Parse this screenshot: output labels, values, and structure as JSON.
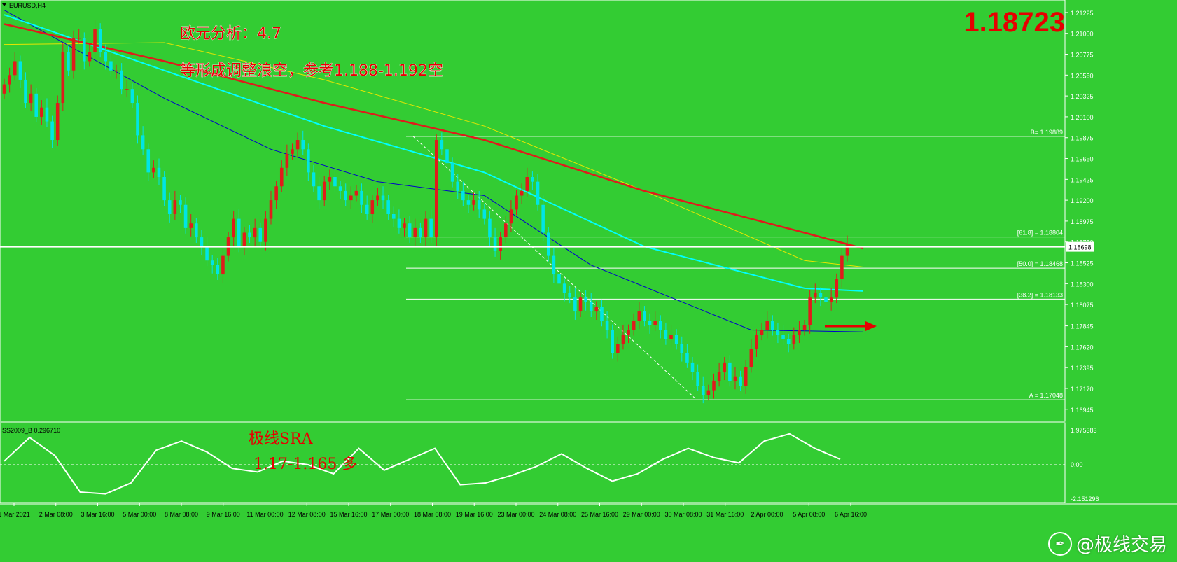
{
  "header": {
    "symbol": "EURUSD,H4",
    "current_price_big": "1.18723"
  },
  "annotations": {
    "line1": "欧元分析：4.7",
    "line2": "等形成调整浪空，参考1.188-1.192空",
    "indicator_note1": "极线SRA",
    "indicator_note2": "1.17-1.165 多"
  },
  "indicator": {
    "label": "SS2009_B 0.296710",
    "axis_top": "1.975383",
    "axis_zero": "0.00",
    "axis_bottom": "-2.151296"
  },
  "watermark": {
    "text": "@极线交易",
    "icon": "feather-logo-icon"
  },
  "colors": {
    "background": "#33cc33",
    "bull": "#e01b1b",
    "bear": "#00e5e5",
    "ma_red": "#e01b1b",
    "ma_cyan": "#00ffff",
    "ma_yellow": "#e6e600",
    "ma_blue": "#0000cc",
    "text_red": "#e60000"
  },
  "chart_data": {
    "type": "candlestick",
    "symbol": "EURUSD",
    "timeframe": "H4",
    "ylim": [
      1.1683,
      1.213
    ],
    "y_ticks": [
      "1.21225",
      "1.21000",
      "1.20775",
      "1.20550",
      "1.20325",
      "1.20100",
      "1.19875",
      "1.19650",
      "1.19425",
      "1.19200",
      "1.18975",
      "1.18750",
      "1.18525",
      "1.18300",
      "1.18075",
      "1.17845",
      "1.17620",
      "1.17395",
      "1.17170",
      "1.16945"
    ],
    "x_ticks": [
      "1 Mar 2021",
      "2 Mar 08:00",
      "3 Mar 16:00",
      "5 Mar 00:00",
      "8 Mar 08:00",
      "9 Mar 16:00",
      "11 Mar 00:00",
      "12 Mar 08:00",
      "15 Mar 16:00",
      "17 Mar 00:00",
      "18 Mar 08:00",
      "19 Mar 16:00",
      "23 Mar 00:00",
      "24 Mar 08:00",
      "25 Mar 16:00",
      "29 Mar 00:00",
      "30 Mar 08:00",
      "31 Mar 16:00",
      "2 Apr 00:00",
      "5 Apr 08:00",
      "6 Apr 16:00"
    ],
    "current_price_label": "1.18698",
    "fibonacci": [
      {
        "label": "B= 1.19889",
        "value": 1.19889
      },
      {
        "label": "[61.8] = 1.18804",
        "value": 1.18804
      },
      {
        "label": "[50.0] = 1.18468",
        "value": 1.18468
      },
      {
        "label": "[38.2] = 1.18133",
        "value": 1.18133
      },
      {
        "label": "A = 1.17048",
        "value": 1.17048
      }
    ],
    "closes": [
      1.2045,
      1.2055,
      1.207,
      1.205,
      1.2025,
      1.2035,
      1.201,
      1.202,
      1.2005,
      1.1985,
      1.2025,
      1.208,
      1.206,
      1.2095,
      1.2095,
      1.207,
      1.208,
      1.2105,
      1.208,
      1.207,
      1.206,
      1.206,
      1.204,
      1.204,
      1.2025,
      1.199,
      1.1975,
      1.195,
      1.1955,
      1.1945,
      1.192,
      1.1905,
      1.192,
      1.1915,
      1.189,
      1.1895,
      1.188,
      1.187,
      1.1855,
      1.185,
      1.184,
      1.186,
      1.188,
      1.19,
      1.187,
      1.1885,
      1.188,
      1.189,
      1.1875,
      1.19,
      1.192,
      1.1935,
      1.1955,
      1.197,
      1.1975,
      1.1985,
      1.1975,
      1.195,
      1.1935,
      1.192,
      1.194,
      1.1945,
      1.1935,
      1.193,
      1.192,
      1.1925,
      1.193,
      1.1915,
      1.1905,
      1.192,
      1.1925,
      1.192,
      1.1905,
      1.19,
      1.189,
      1.1895,
      1.188,
      1.189,
      1.188,
      1.19,
      1.188,
      1.1985,
      1.1975,
      1.196,
      1.194,
      1.193,
      1.192,
      1.1915,
      1.192,
      1.191,
      1.19,
      1.188,
      1.1865,
      1.188,
      1.1895,
      1.191,
      1.1925,
      1.193,
      1.1945,
      1.194,
      1.1915,
      1.1885,
      1.186,
      1.184,
      1.183,
      1.182,
      1.1815,
      1.18,
      1.1815,
      1.181,
      1.18,
      1.1805,
      1.179,
      1.178,
      1.1755,
      1.1765,
      1.1775,
      1.178,
      1.179,
      1.18,
      1.179,
      1.1785,
      1.179,
      1.178,
      1.177,
      1.1775,
      1.1765,
      1.1755,
      1.1745,
      1.1735,
      1.172,
      1.171,
      1.1715,
      1.1725,
      1.1735,
      1.1745,
      1.1725,
      1.173,
      1.172,
      1.174,
      1.176,
      1.1775,
      1.178,
      1.179,
      1.178,
      1.1775,
      1.177,
      1.1765,
      1.1775,
      1.178,
      1.1785,
      1.1815,
      1.182,
      1.1815,
      1.181,
      1.1815,
      1.1835,
      1.186,
      1.1872
    ],
    "ma_red_points": [
      [
        0,
        1.211
      ],
      [
        30,
        1.207
      ],
      [
        60,
        1.2025
      ],
      [
        90,
        1.1985
      ],
      [
        120,
        1.193
      ],
      [
        150,
        1.1885
      ],
      [
        161,
        1.1868
      ]
    ],
    "ma_yellow_points": [
      [
        0,
        1.2088
      ],
      [
        30,
        1.209
      ],
      [
        60,
        1.205
      ],
      [
        90,
        1.2
      ],
      [
        120,
        1.193
      ],
      [
        150,
        1.1855
      ],
      [
        161,
        1.1848
      ]
    ],
    "ma_cyan_points": [
      [
        0,
        1.212
      ],
      [
        30,
        1.206
      ],
      [
        60,
        1.2
      ],
      [
        90,
        1.195
      ],
      [
        120,
        1.187
      ],
      [
        150,
        1.1825
      ],
      [
        161,
        1.1822
      ]
    ],
    "ma_blue_points": [
      [
        0,
        1.2125
      ],
      [
        30,
        1.203
      ],
      [
        50,
        1.1975
      ],
      [
        70,
        1.194
      ],
      [
        90,
        1.1925
      ],
      [
        110,
        1.185
      ],
      [
        140,
        1.178
      ],
      [
        161,
        1.1778
      ]
    ],
    "indicator_values": [
      0.2,
      1.5,
      0.5,
      -1.5,
      -1.6,
      -1.0,
      0.8,
      1.3,
      0.7,
      -0.2,
      -0.4,
      0.2,
      0.0,
      -0.5,
      0.9,
      -0.3,
      0.3,
      0.9,
      -1.1,
      -1.0,
      -0.6,
      -0.1,
      0.6,
      -0.2,
      -0.9,
      -0.5,
      0.3,
      0.9,
      0.4,
      0.1,
      1.3,
      1.7,
      0.9,
      0.3
    ]
  }
}
